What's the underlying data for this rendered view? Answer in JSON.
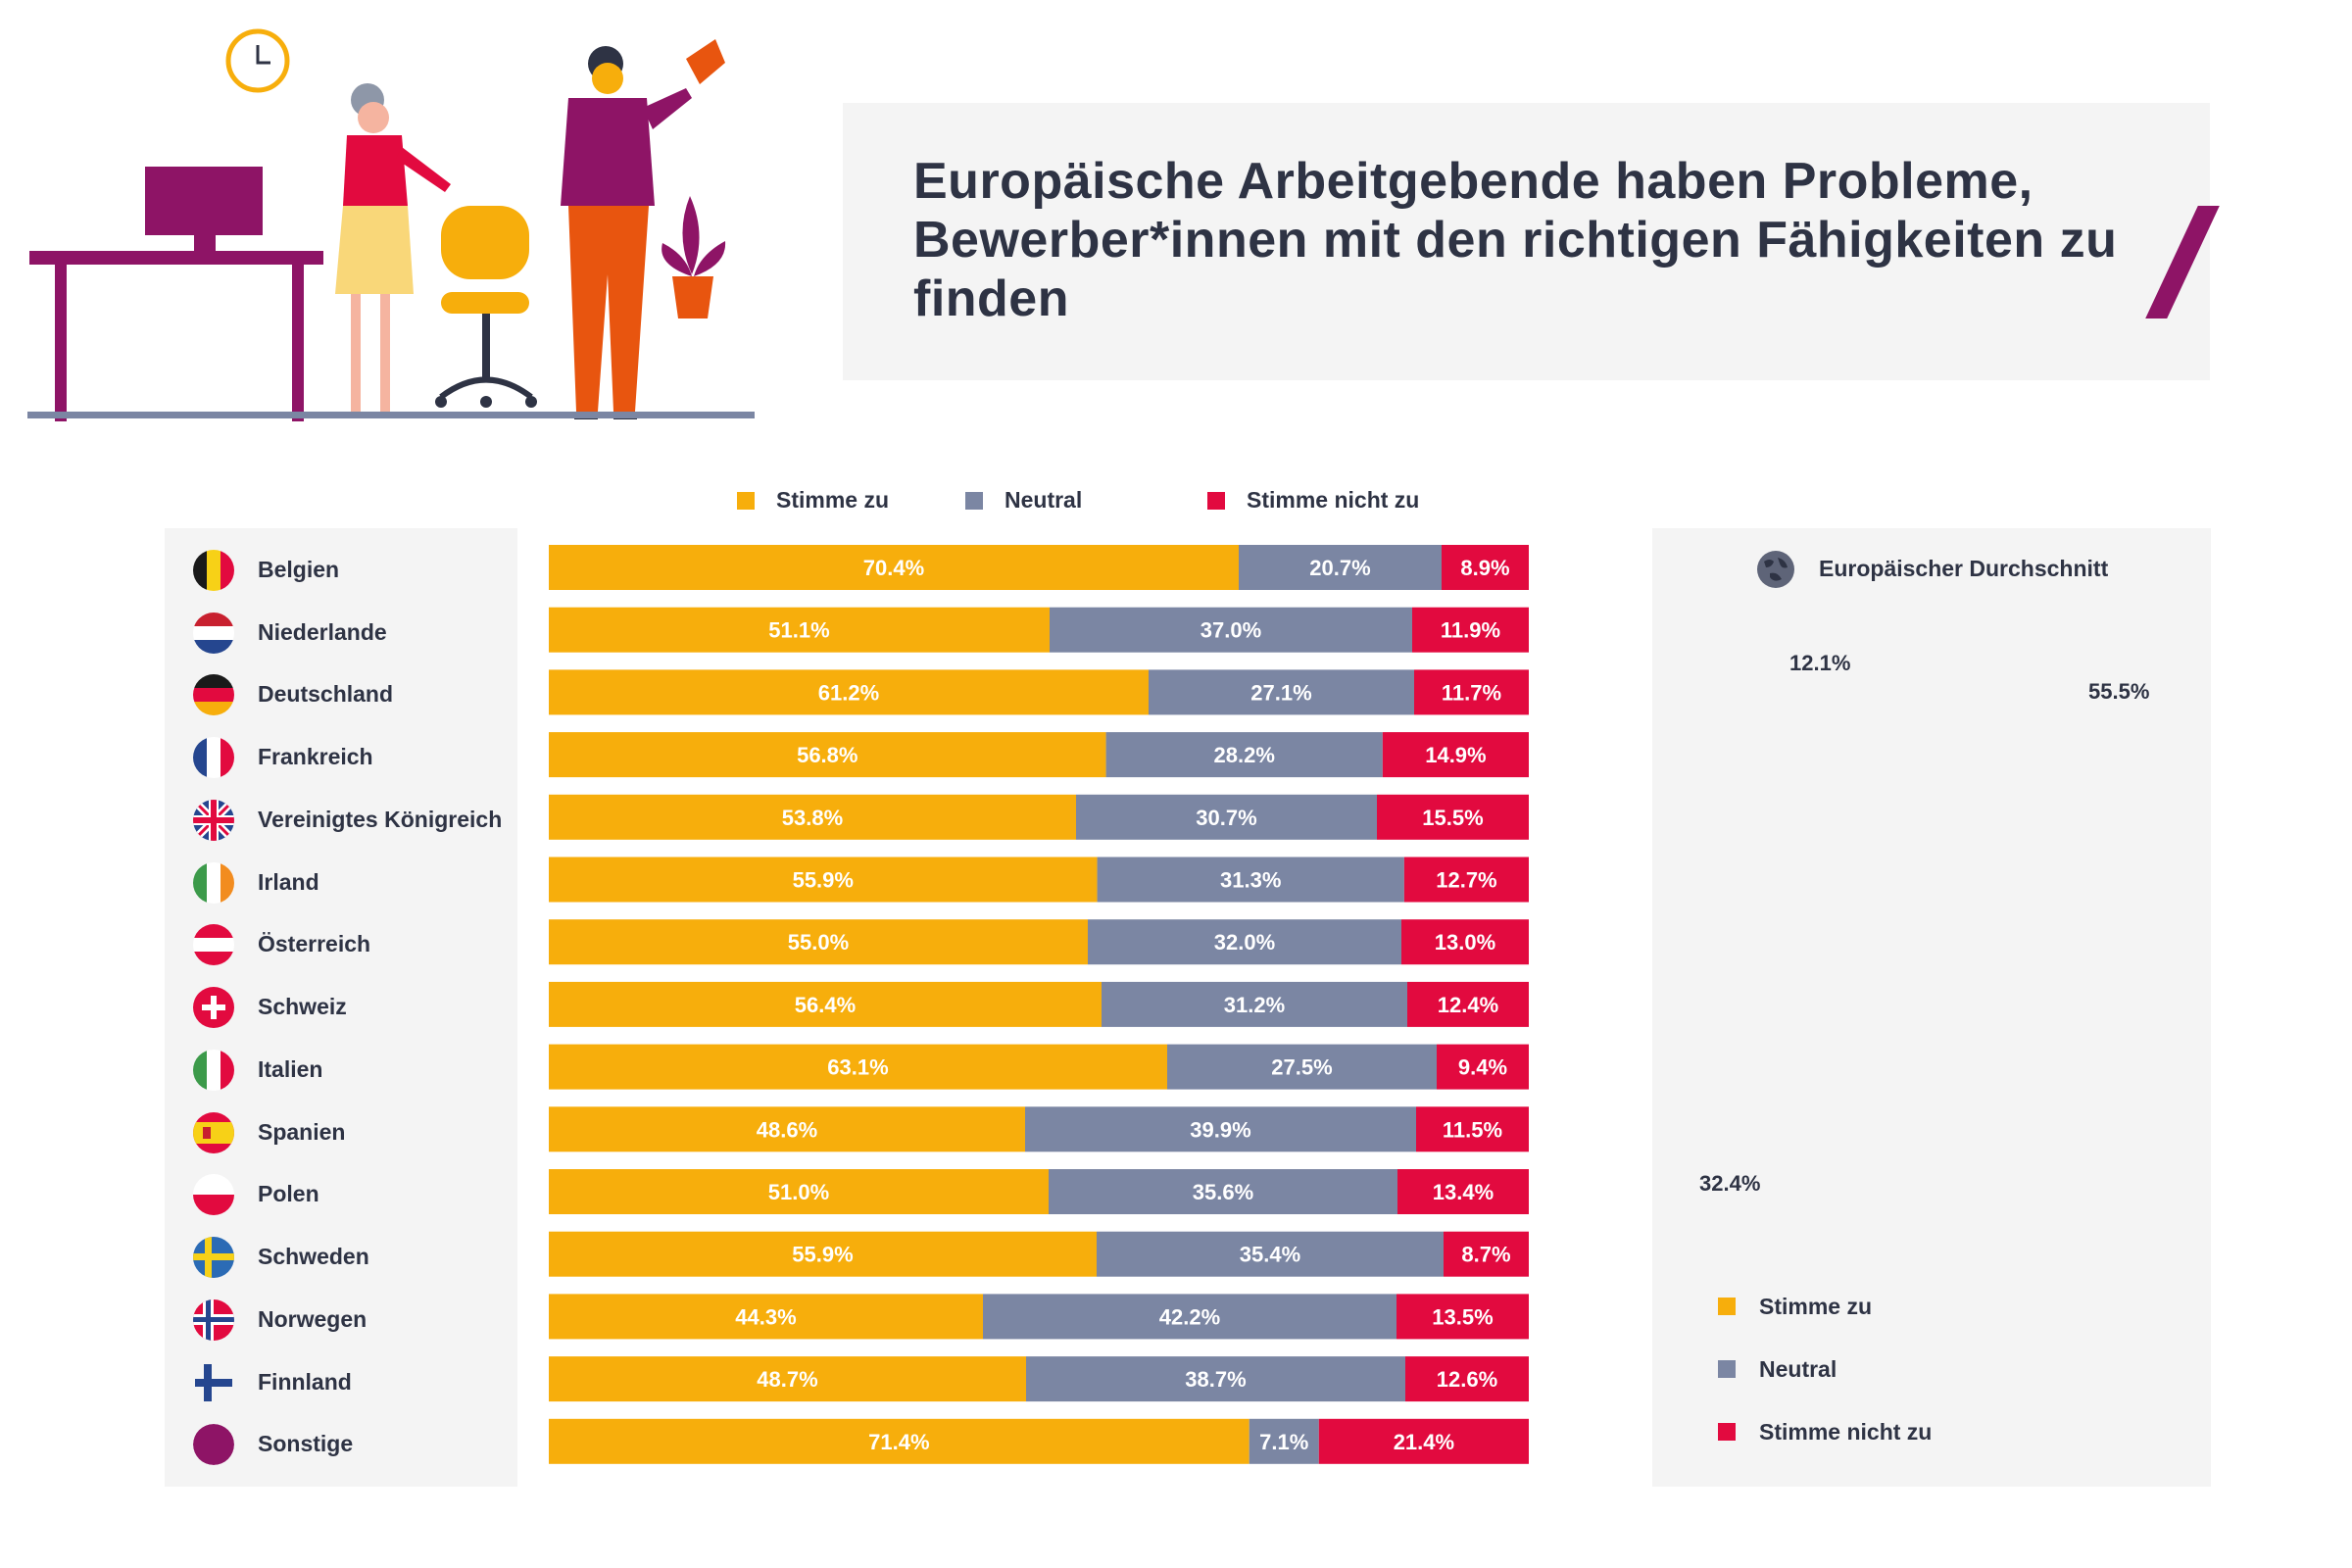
{
  "title": "Europäische Arbeitgebende haben Probleme, Bewerber*innen mit den richtigen Fähigkeiten zu finden",
  "legend": {
    "agree": "Stimme zu",
    "neutral": "Neutral",
    "disagree": "Stimme nicht zu"
  },
  "colors": {
    "agree": "#f7ae0c",
    "neutral": "#7b86a3",
    "disagree": "#e20a3f",
    "panel": "#f4f4f4",
    "accent": "#8e1466"
  },
  "countries": [
    {
      "name": "Belgien",
      "flag": "belgium-flag-icon"
    },
    {
      "name": "Niederlande",
      "flag": "netherlands-flag-icon"
    },
    {
      "name": "Deutschland",
      "flag": "germany-flag-icon"
    },
    {
      "name": "Frankreich",
      "flag": "france-flag-icon"
    },
    {
      "name": "Vereinigtes Königreich",
      "flag": "uk-flag-icon"
    },
    {
      "name": "Irland",
      "flag": "ireland-flag-icon"
    },
    {
      "name": "Österreich",
      "flag": "austria-flag-icon"
    },
    {
      "name": "Schweiz",
      "flag": "switzerland-flag-icon"
    },
    {
      "name": "Italien",
      "flag": "italy-flag-icon"
    },
    {
      "name": "Spanien",
      "flag": "spain-flag-icon"
    },
    {
      "name": "Polen",
      "flag": "poland-flag-icon"
    },
    {
      "name": "Schweden",
      "flag": "sweden-flag-icon"
    },
    {
      "name": "Norwegen",
      "flag": "norway-flag-icon"
    },
    {
      "name": "Finnland",
      "flag": "finland-flag-icon"
    },
    {
      "name": "Sonstige",
      "flag": "other-circle-icon"
    }
  ],
  "average": {
    "title": "Europäischer Durchschnitt",
    "agree_label": "55.5%",
    "neutral_label": "32.4%",
    "disagree_label": "12.1%"
  },
  "chart_data": [
    {
      "type": "bar",
      "orientation": "horizontal",
      "stacked": true,
      "normalized": true,
      "categories": [
        "Belgien",
        "Niederlande",
        "Deutschland",
        "Frankreich",
        "Vereinigtes Königreich",
        "Irland",
        "Österreich",
        "Schweiz",
        "Italien",
        "Spanien",
        "Polen",
        "Schweden",
        "Norwegen",
        "Finnland",
        "Sonstige"
      ],
      "series": [
        {
          "name": "Stimme zu",
          "values": [
            70.4,
            51.1,
            61.2,
            56.8,
            53.8,
            55.9,
            55.0,
            56.4,
            63.1,
            48.6,
            51.0,
            55.9,
            44.3,
            48.7,
            71.4
          ],
          "labels": [
            "70.4%",
            "51.1%",
            "61.2%",
            "56.8%",
            "53.8%",
            "55.9%",
            "55.0%",
            "56.4%",
            "63.1%",
            "48.6%",
            "51.0%",
            "55.9%",
            "44.3%",
            "48.7%",
            "71.4%"
          ]
        },
        {
          "name": "Neutral",
          "values": [
            20.7,
            37.0,
            27.1,
            28.2,
            30.7,
            31.3,
            32.0,
            31.2,
            27.5,
            39.9,
            35.6,
            35.4,
            42.2,
            38.7,
            7.1
          ],
          "labels": [
            "20.7%",
            "37.0%",
            "27.1%",
            "28.2%",
            "30.7%",
            "31.3%",
            "32.0%",
            "31.2%",
            "27.5%",
            "39.9%",
            "35.6%",
            "35.4%",
            "42.2%",
            "38.7%",
            "7.1%"
          ]
        },
        {
          "name": "Stimme nicht zu",
          "values": [
            8.9,
            11.9,
            11.7,
            14.9,
            15.5,
            12.7,
            13.0,
            12.4,
            9.4,
            11.5,
            13.4,
            8.7,
            13.5,
            12.6,
            21.4
          ],
          "labels": [
            "8.9%",
            "11.9%",
            "11.7%",
            "14.9%",
            "15.5%",
            "12.7%",
            "13.0%",
            "12.4%",
            "9.4%",
            "11.5%",
            "13.4%",
            "8.7%",
            "13.5%",
            "12.6%",
            "21.4%"
          ]
        }
      ],
      "xlim": [
        0,
        100
      ],
      "legend": "top"
    },
    {
      "type": "pie",
      "donut": true,
      "title": "Europäischer Durchschnitt",
      "categories": [
        "Stimme zu",
        "Neutral",
        "Stimme nicht zu"
      ],
      "values": [
        55.5,
        32.4,
        12.1
      ],
      "legend": "bottom"
    }
  ]
}
